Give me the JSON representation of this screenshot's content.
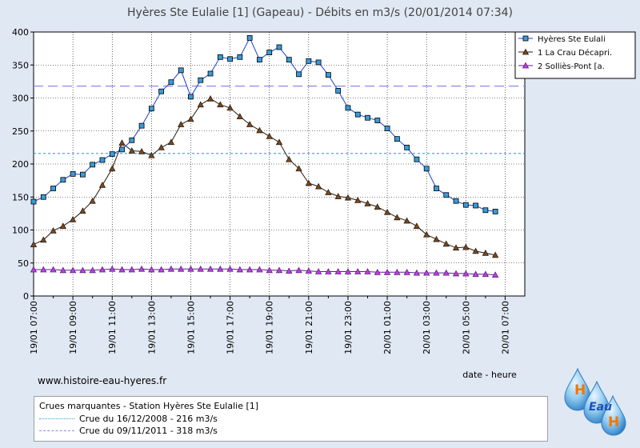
{
  "chart_data": {
    "type": "line",
    "title": "Hyères Ste Eulalie [1] (Gapeau) - Débits en m3/s (20/01/2014 07:34)",
    "xlabel": "date - heure",
    "ylabel": "",
    "ylim": [
      0,
      400
    ],
    "yticks": [
      0,
      50,
      100,
      150,
      200,
      250,
      300,
      350,
      400
    ],
    "xlim": [
      7,
      32
    ],
    "x_tick_hours": [
      7,
      9,
      11,
      13,
      15,
      17,
      19,
      21,
      23,
      25,
      27,
      29,
      31
    ],
    "x_tick_labels": [
      "19/01 07:00",
      "19/01 09:00",
      "19/01 11:00",
      "19/01 13:00",
      "19/01 15:00",
      "19/01 17:00",
      "19/01 19:00",
      "19/01 21:00",
      "19/01 23:00",
      "20/01 01:00",
      "20/01 03:00",
      "20/01 05:00",
      "20/01 07:00"
    ],
    "grid": "x and y",
    "legend_position": "right",
    "series": [
      {
        "name": "Hyères Ste Eulali",
        "color": "#1e3fd0",
        "marker": "square",
        "marker_color": "#3a9bd8",
        "x": [
          7,
          7.5,
          8,
          8.5,
          9,
          9.5,
          10,
          10.5,
          11,
          11.5,
          12,
          12.5,
          13,
          13.5,
          14,
          14.5,
          15,
          15.5,
          16,
          16.5,
          17,
          17.5,
          18,
          18.5,
          19,
          19.5,
          20,
          20.5,
          21,
          21.5,
          22,
          22.5,
          23,
          23.5,
          24,
          24.5,
          25,
          25.5,
          26,
          26.5,
          27,
          27.5,
          28,
          28.5,
          29,
          29.5,
          30,
          30.5
        ],
        "values": [
          143,
          150,
          163,
          176,
          185,
          184,
          199,
          206,
          215,
          222,
          236,
          258,
          284,
          310,
          324,
          342,
          302,
          327,
          337,
          362,
          359,
          362,
          391,
          358,
          369,
          377,
          358,
          336,
          356,
          354,
          335,
          311,
          285,
          275,
          270,
          266,
          254,
          238,
          225,
          207,
          193,
          163,
          153,
          144,
          138,
          137,
          130,
          128
        ]
      },
      {
        "name": "1 La Crau Décapri.",
        "color": "#2a1a10",
        "marker": "triangle",
        "marker_color": "#7a4a20",
        "x": [
          7,
          7.5,
          8,
          8.5,
          9,
          9.5,
          10,
          10.5,
          11,
          11.5,
          12,
          12.5,
          13,
          13.5,
          14,
          14.5,
          15,
          15.5,
          16,
          16.5,
          17,
          17.5,
          18,
          18.5,
          19,
          19.5,
          20,
          20.5,
          21,
          21.5,
          22,
          22.5,
          23,
          23.5,
          24,
          24.5,
          25,
          25.5,
          26,
          26.5,
          27,
          27.5,
          28,
          28.5,
          29,
          29.5,
          30,
          30.5
        ],
        "values": [
          78,
          85,
          99,
          106,
          116,
          129,
          144,
          168,
          193,
          232,
          220,
          219,
          213,
          225,
          233,
          260,
          268,
          290,
          299,
          290,
          285,
          272,
          260,
          251,
          242,
          233,
          207,
          193,
          171,
          166,
          157,
          151,
          149,
          145,
          140,
          135,
          127,
          119,
          114,
          106,
          93,
          86,
          79,
          73,
          74,
          68,
          65,
          62
        ]
      },
      {
        "name": "2 Solliès-Pont [a.",
        "color": "#5a1f8c",
        "marker": "triangle",
        "marker_color": "#c040d8",
        "x": [
          7,
          7.5,
          8,
          8.5,
          9,
          9.5,
          10,
          10.5,
          11,
          11.5,
          12,
          12.5,
          13,
          13.5,
          14,
          14.5,
          15,
          15.5,
          16,
          16.5,
          17,
          17.5,
          18,
          18.5,
          19,
          19.5,
          20,
          20.5,
          21,
          21.5,
          22,
          22.5,
          23,
          23.5,
          24,
          24.5,
          25,
          25.5,
          26,
          26.5,
          27,
          27.5,
          28,
          28.5,
          29,
          29.5,
          30,
          30.5
        ],
        "values": [
          40,
          40,
          40,
          39,
          39,
          39,
          39,
          40,
          41,
          40,
          40,
          41,
          40,
          40,
          41,
          41,
          41,
          41,
          41,
          41,
          41,
          40,
          40,
          40,
          39,
          39,
          38,
          39,
          38,
          37,
          37,
          37,
          37,
          37,
          37,
          36,
          36,
          36,
          36,
          35,
          35,
          35,
          35,
          34,
          34,
          33,
          33,
          32
        ]
      }
    ],
    "reference_lines": [
      {
        "value": 216,
        "color": "#2aa6d8",
        "style": "dotted"
      },
      {
        "value": 318,
        "color": "#8a8ae8",
        "style": "dashed"
      }
    ]
  },
  "website": "www.histoire-eau-hyeres.fr",
  "info_box": {
    "title": "Crues marquantes - Station Hyères Ste Eulalie [1]",
    "rows": [
      {
        "label": "Crue du 16/12/2008 - 216 m3/s",
        "color": "#2aa6d8",
        "style": "dotted"
      },
      {
        "label": "Crue du 09/11/2011 - 318 m3/s",
        "color": "#8a8ae8",
        "style": "dashed"
      }
    ]
  },
  "logo": {
    "letters": [
      "H",
      "Eau",
      "H"
    ],
    "icon": "water-drops-logo"
  }
}
